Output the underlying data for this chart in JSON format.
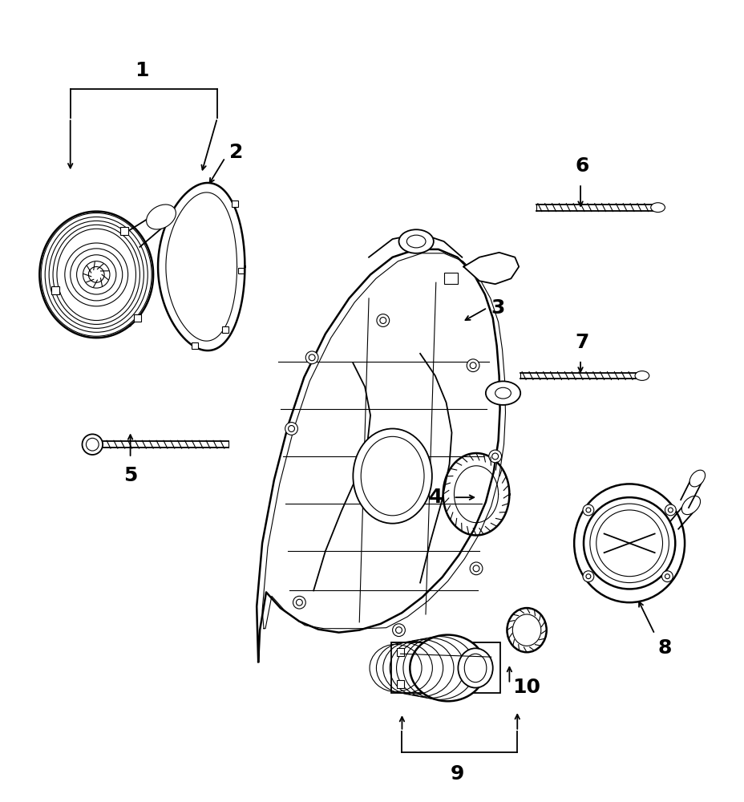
{
  "bg_color": "#ffffff",
  "line_color": "#000000",
  "label_fontsize": 18,
  "figsize": [
    9.29,
    10.0
  ],
  "dpi": 100
}
